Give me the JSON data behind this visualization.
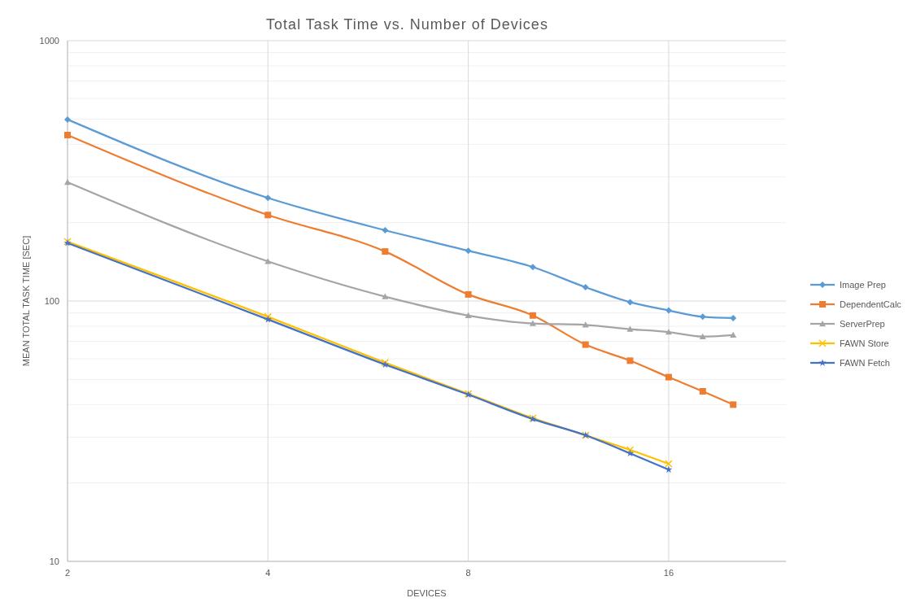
{
  "chart_data": {
    "type": "line",
    "title": "Total Task Time vs. Number of Devices",
    "xlabel": "DEVICES",
    "ylabel": "MEAN TOTAL TASK TIME [SEC]",
    "log": "xy",
    "grid": true,
    "legend": "right",
    "xlim": [
      2,
      24
    ],
    "xticks": [
      2,
      4,
      8,
      16
    ],
    "ylim": [
      10,
      1000
    ],
    "yticks": [
      10,
      100,
      1000
    ],
    "x": [
      2,
      4,
      6,
      8,
      10,
      12,
      14,
      16,
      18,
      20
    ],
    "series": [
      {
        "name": "Image Prep",
        "color": "#5b9bd5",
        "marker": "diamond",
        "values": [
          498,
          249,
          187,
          156,
          135,
          113,
          99,
          92,
          87,
          86
        ]
      },
      {
        "name": "DependentCalc",
        "color": "#ed7d31",
        "marker": "square",
        "values": [
          434,
          214,
          155,
          106,
          88,
          68,
          59,
          51,
          45,
          40
        ]
      },
      {
        "name": "ServerPrep",
        "color": "#a5a5a5",
        "marker": "triangle",
        "values": [
          286,
          142,
          104,
          88,
          82,
          81,
          78,
          76,
          73,
          74
        ]
      },
      {
        "name": "FAWN Store",
        "color": "#ffc000",
        "marker": "cross",
        "values": [
          169,
          87,
          58,
          44,
          35.5,
          30.5,
          26.8,
          23.7,
          null,
          null
        ]
      },
      {
        "name": "FAWN Fetch",
        "color": "#4472c4",
        "marker": "star",
        "values": [
          167,
          85,
          57,
          43.7,
          35.2,
          30.5,
          26,
          22.5,
          null,
          null
        ]
      }
    ]
  }
}
